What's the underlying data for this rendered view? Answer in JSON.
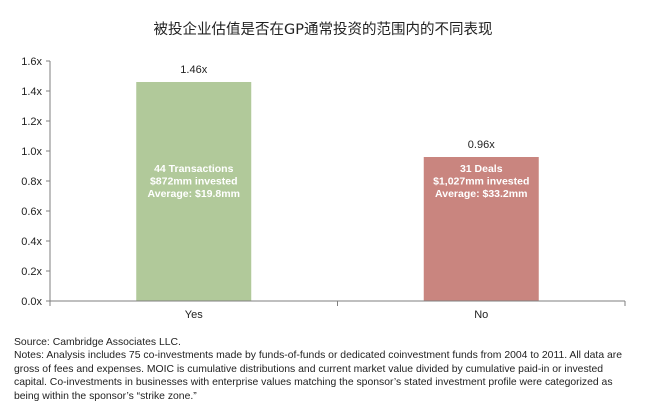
{
  "chart_data": {
    "type": "bar",
    "title": "被投企业估值是否在GP通常投资的范围内的不同表现",
    "categories": [
      "Yes",
      "No"
    ],
    "values": [
      1.46,
      0.96
    ],
    "value_labels": [
      "1.46x",
      "0.96x"
    ],
    "bar_text": [
      [
        "44 Transactions",
        "$872mm invested",
        "Average: $19.8mm"
      ],
      [
        "31 Deals",
        "$1,027mm invested",
        "Average: $33.2mm"
      ]
    ],
    "colors": [
      "#b1c99a",
      "#c9857f"
    ],
    "ylim": [
      0,
      1.6
    ],
    "yticks": [
      "0.0x",
      "0.2x",
      "0.4x",
      "0.6x",
      "0.8x",
      "1.0x",
      "1.2x",
      "1.4x",
      "1.6x"
    ],
    "grid": false,
    "xlabel": "",
    "ylabel": ""
  },
  "notes": {
    "source": "Source: Cambridge Associates LLC.",
    "text": "Notes: Analysis includes 75 co-investments made by funds-of-funds or dedicated coinvestment funds from 2004 to 2011. All data are gross of fees and expenses. MOIC is cumulative distributions and current market value divided by cumulative paid-in or invested capital. Co-investments in businesses with enterprise values matching the sponsor’s stated investment profile were categorized as being within the sponsor’s “strike zone.”"
  }
}
